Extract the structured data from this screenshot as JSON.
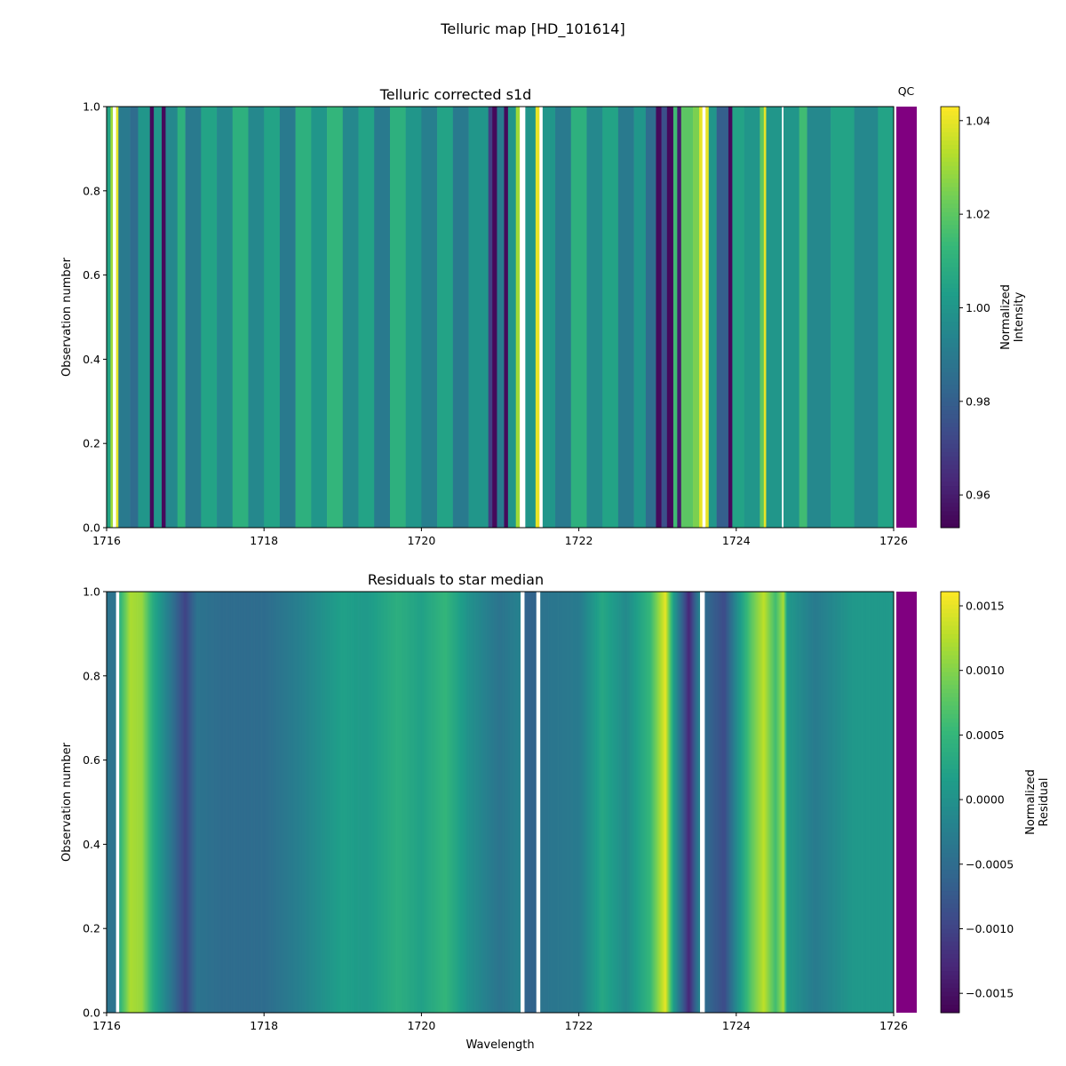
{
  "figure_title": "Telluric map [HD_101614]",
  "qc_label": "QC",
  "qc_color": "#800080",
  "colormap": "viridis",
  "chart_data": [
    {
      "type": "heatmap",
      "title": "Telluric corrected s1d",
      "xlabel": "",
      "ylabel": "Observation number",
      "xlim": [
        1716,
        1726
      ],
      "ylim": [
        0,
        1
      ],
      "xticks": [
        "1716",
        "1718",
        "1720",
        "1722",
        "1724",
        "1726"
      ],
      "yticks": [
        "0.0",
        "0.2",
        "0.4",
        "0.6",
        "0.8",
        "1.0"
      ],
      "colorbar_label": [
        "Normalized",
        "Intensity"
      ],
      "colorbar_range": [
        0.953,
        1.043
      ],
      "colorbar_ticks": [
        "0.96",
        "0.98",
        "1.00",
        "1.02",
        "1.04"
      ],
      "interpolation": "step",
      "profile": [
        [
          1716.0,
          1.005
        ],
        [
          1716.05,
          1.03
        ],
        [
          1716.08,
          null
        ],
        [
          1716.12,
          1.04
        ],
        [
          1716.15,
          0.99
        ],
        [
          1716.3,
          0.985
        ],
        [
          1716.4,
          1.0
        ],
        [
          1716.55,
          0.955
        ],
        [
          1716.6,
          1.0
        ],
        [
          1716.7,
          0.955
        ],
        [
          1716.75,
          0.995
        ],
        [
          1716.9,
          1.01
        ],
        [
          1717.0,
          0.99
        ],
        [
          1717.2,
          1.005
        ],
        [
          1717.4,
          0.995
        ],
        [
          1717.6,
          1.01
        ],
        [
          1717.8,
          0.995
        ],
        [
          1718.0,
          1.005
        ],
        [
          1718.2,
          0.99
        ],
        [
          1718.4,
          1.01
        ],
        [
          1718.6,
          1.0
        ],
        [
          1718.8,
          1.012
        ],
        [
          1719.0,
          0.995
        ],
        [
          1719.2,
          1.005
        ],
        [
          1719.4,
          0.99
        ],
        [
          1719.6,
          1.01
        ],
        [
          1719.8,
          1.0
        ],
        [
          1720.0,
          0.992
        ],
        [
          1720.2,
          1.005
        ],
        [
          1720.4,
          0.99
        ],
        [
          1720.6,
          1.0
        ],
        [
          1720.85,
          0.97
        ],
        [
          1720.9,
          0.955
        ],
        [
          1720.96,
          0.99
        ],
        [
          1721.05,
          0.955
        ],
        [
          1721.1,
          1.0
        ],
        [
          1721.2,
          1.03
        ],
        [
          1721.25,
          null
        ],
        [
          1721.32,
          1.0
        ],
        [
          1721.45,
          1.04
        ],
        [
          1721.5,
          null
        ],
        [
          1721.54,
          1.0
        ],
        [
          1721.7,
          0.99
        ],
        [
          1721.9,
          1.01
        ],
        [
          1722.1,
          0.995
        ],
        [
          1722.3,
          1.005
        ],
        [
          1722.5,
          0.99
        ],
        [
          1722.7,
          1.0
        ],
        [
          1722.85,
          0.985
        ],
        [
          1722.98,
          0.955
        ],
        [
          1723.05,
          0.975
        ],
        [
          1723.12,
          0.955
        ],
        [
          1723.2,
          1.015
        ],
        [
          1723.25,
          0.96
        ],
        [
          1723.3,
          1.02
        ],
        [
          1723.45,
          1.025
        ],
        [
          1723.53,
          1.04
        ],
        [
          1723.57,
          null
        ],
        [
          1723.61,
          1.04
        ],
        [
          1723.65,
          1.0
        ],
        [
          1723.75,
          0.98
        ],
        [
          1723.9,
          0.955
        ],
        [
          1723.95,
          1.005
        ],
        [
          1724.1,
          1.0
        ],
        [
          1724.3,
          1.02
        ],
        [
          1724.35,
          1.04
        ],
        [
          1724.38,
          1.0
        ],
        [
          1724.58,
          null
        ],
        [
          1724.6,
          1.0
        ],
        [
          1724.8,
          1.015
        ],
        [
          1724.9,
          0.995
        ],
        [
          1725.2,
          1.005
        ],
        [
          1725.5,
          0.995
        ],
        [
          1725.8,
          1.005
        ],
        [
          1726.0,
          1.005
        ]
      ]
    },
    {
      "type": "heatmap",
      "title": "Residuals to star median",
      "xlabel": "Wavelength",
      "ylabel": "Observation number",
      "xlim": [
        1716,
        1726
      ],
      "ylim": [
        0,
        1
      ],
      "xticks": [
        "1716",
        "1718",
        "1720",
        "1722",
        "1724",
        "1726"
      ],
      "yticks": [
        "0.0",
        "0.2",
        "0.4",
        "0.6",
        "0.8",
        "1.0"
      ],
      "colorbar_label": [
        "Normalized",
        "Residual"
      ],
      "colorbar_range": [
        -0.00165,
        0.00161
      ],
      "colorbar_ticks": [
        "−0.0015",
        "−0.0010",
        "−0.0005",
        "0.0000",
        "0.0005",
        "0.0010",
        "0.0015"
      ],
      "interpolation": "linear",
      "profile": [
        [
          1716.0,
          -0.0004
        ],
        [
          1716.11,
          -0.0004
        ],
        [
          1716.12,
          null
        ],
        [
          1716.16,
          0.0004
        ],
        [
          1716.3,
          0.0012
        ],
        [
          1716.45,
          0.0011
        ],
        [
          1716.6,
          0.0003
        ],
        [
          1716.8,
          -0.0003
        ],
        [
          1717.0,
          -0.001
        ],
        [
          1717.15,
          -0.0004
        ],
        [
          1717.5,
          -0.0005
        ],
        [
          1718.0,
          -0.0005
        ],
        [
          1718.5,
          -0.0002
        ],
        [
          1719.0,
          0.0002
        ],
        [
          1719.3,
          0.0001
        ],
        [
          1719.7,
          0.0004
        ],
        [
          1720.0,
          0.0002
        ],
        [
          1720.3,
          0.0005
        ],
        [
          1720.6,
          0.0
        ],
        [
          1721.0,
          -0.0004
        ],
        [
          1721.25,
          -0.0002
        ],
        [
          1721.26,
          null
        ],
        [
          1721.31,
          -0.0006
        ],
        [
          1721.45,
          -0.0006
        ],
        [
          1721.46,
          null
        ],
        [
          1721.51,
          -0.0004
        ],
        [
          1722.0,
          -0.0003
        ],
        [
          1722.3,
          0.0003
        ],
        [
          1722.6,
          -0.0001
        ],
        [
          1722.9,
          0.0005
        ],
        [
          1723.1,
          0.0015
        ],
        [
          1723.2,
          0.0002
        ],
        [
          1723.4,
          -0.0013
        ],
        [
          1723.53,
          -0.0002
        ],
        [
          1723.54,
          null
        ],
        [
          1723.6,
          -0.0005
        ],
        [
          1723.85,
          -0.0009
        ],
        [
          1724.0,
          -0.0001
        ],
        [
          1724.2,
          0.0008
        ],
        [
          1724.35,
          0.0013
        ],
        [
          1724.5,
          0.0006
        ],
        [
          1724.6,
          0.0012
        ],
        [
          1724.65,
          0.0001
        ],
        [
          1725.0,
          -0.0003
        ],
        [
          1725.5,
          0.0001
        ],
        [
          1726.0,
          0.0001
        ]
      ]
    }
  ]
}
